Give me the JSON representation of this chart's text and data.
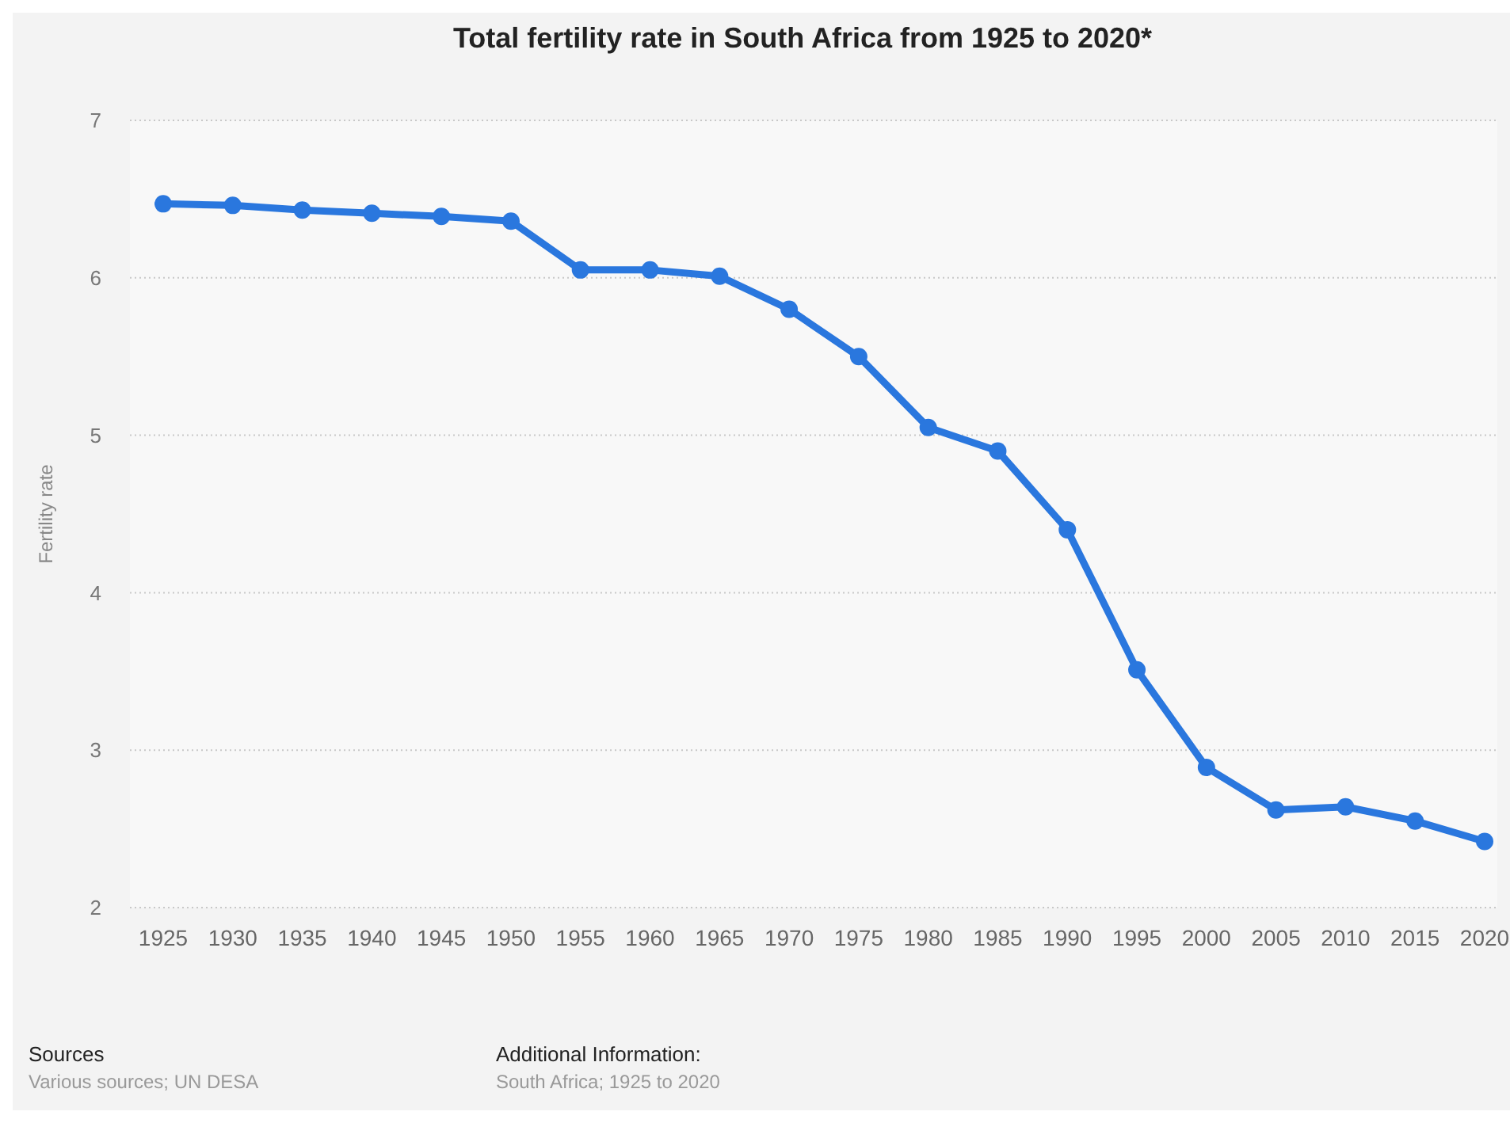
{
  "chart_data": {
    "type": "line",
    "title": "Total fertility rate in South Africa from 1925 to 2020*",
    "ylabel": "Fertility rate",
    "categories": [
      "1925",
      "1930",
      "1935",
      "1940",
      "1945",
      "1950",
      "1955",
      "1960",
      "1965",
      "1970",
      "1975",
      "1980",
      "1985",
      "1990",
      "1995",
      "2000",
      "2005",
      "2010",
      "2015",
      "2020"
    ],
    "series": [
      {
        "color": "#2a77de",
        "values": [
          6.47,
          6.46,
          6.43,
          6.41,
          6.39,
          6.36,
          6.05,
          6.05,
          6.01,
          5.8,
          5.5,
          5.05,
          4.9,
          4.4,
          3.51,
          2.89,
          2.62,
          2.64,
          2.55,
          2.42
        ]
      }
    ],
    "ylim": [
      2,
      7
    ],
    "yticks": [
      2,
      3,
      4,
      5,
      6,
      7
    ],
    "grid": "y",
    "marker": "circle",
    "line_style": "solid",
    "annotations": [
      "Sources",
      "Various sources; UN DESA",
      "Additional Information:",
      "South Africa; 1925 to 2020"
    ]
  }
}
